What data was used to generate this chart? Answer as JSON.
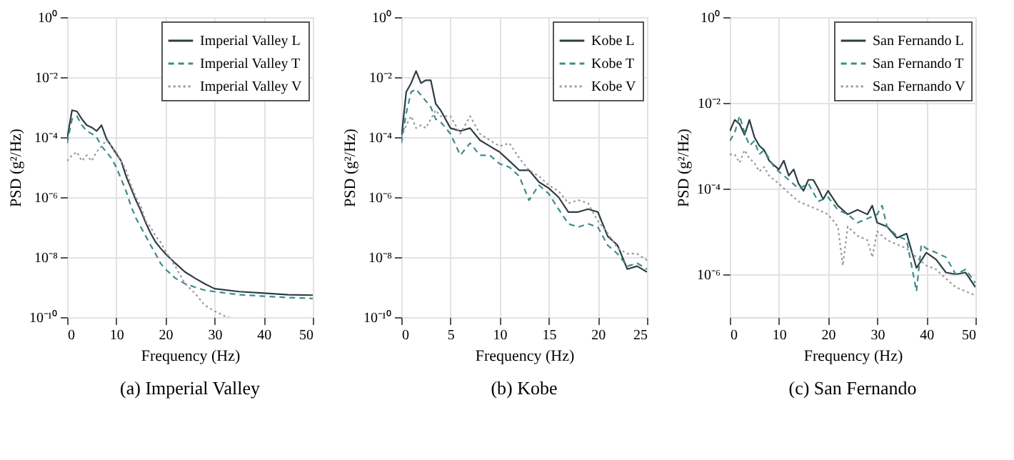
{
  "chart_data": [
    {
      "type": "line",
      "title": "(a) Imperial Valley",
      "xlabel": "Frequency (Hz)",
      "ylabel": "PSD (g²/Hz)",
      "log": true,
      "grid": true,
      "legend": "top right",
      "xlim": [
        0,
        50
      ],
      "xticks": [
        0,
        10,
        20,
        30,
        40,
        50
      ],
      "ylim": [
        1e-10,
        1
      ],
      "yticks": [
        {
          "value": 1e-10,
          "label": "10⁻¹⁰"
        },
        {
          "value": 1e-08,
          "label": "10⁻⁸"
        },
        {
          "value": 1e-06,
          "label": "10⁻⁶"
        },
        {
          "value": 0.0001,
          "label": "10⁻⁴"
        },
        {
          "value": 0.01,
          "label": "10⁻²"
        },
        {
          "value": 1,
          "label": "10⁰"
        }
      ],
      "series": [
        {
          "name": "Imperial Valley L",
          "color": "#2e3d42",
          "line_style": "solid",
          "x": [
            0,
            1,
            2,
            3,
            4,
            5,
            6,
            7,
            8,
            9,
            10,
            11,
            12,
            13,
            14,
            15,
            16,
            17,
            18,
            19,
            20,
            22,
            24,
            26,
            28,
            30,
            35,
            40,
            45,
            50
          ],
          "values": [
            8.9e-05,
            0.00079,
            0.00072,
            0.0004,
            0.00025,
            0.00021,
            0.00016,
            0.00025,
            8.9e-05,
            5e-05,
            2.8e-05,
            1.6e-05,
            5e-06,
            2e-06,
            7.9e-07,
            3.5e-07,
            1.4e-07,
            6.3e-08,
            3.2e-08,
            2e-08,
            1.3e-08,
            6.3e-09,
            3.2e-09,
            2e-09,
            1.3e-09,
            8.9e-10,
            7.1e-10,
            6.3e-10,
            5.6e-10,
            5.4e-10
          ]
        },
        {
          "name": "Imperial Valley T",
          "color": "#3d8c8a",
          "line_style": "dashed",
          "x": [
            0,
            1,
            2,
            3,
            4,
            5,
            6,
            7,
            8,
            9,
            10,
            11,
            12,
            13,
            14,
            15,
            16,
            17,
            18,
            19,
            20,
            22,
            24,
            26,
            28,
            30,
            35,
            40,
            45,
            50
          ],
          "values": [
            6.3e-05,
            0.0004,
            0.0005,
            0.00025,
            0.00016,
            0.00013,
            0.0001,
            5e-05,
            3.2e-05,
            2e-05,
            1e-05,
            4e-06,
            1.6e-06,
            5e-07,
            2e-07,
            1e-07,
            5e-08,
            2.5e-08,
            1.3e-08,
            6.3e-09,
            4e-09,
            2e-09,
            1.3e-09,
            1e-09,
            7.9e-10,
            7.1e-10,
            5.6e-10,
            5e-10,
            4.5e-10,
            4.2e-10
          ]
        },
        {
          "name": "Imperial Valley V",
          "color": "#9a9a9a",
          "line_style": "dotted",
          "x": [
            0,
            1,
            2,
            3,
            4,
            5,
            6,
            7,
            8,
            9,
            10,
            11,
            12,
            13,
            14,
            15,
            16,
            17,
            18,
            19,
            20,
            22,
            24,
            26,
            28,
            30,
            32,
            33
          ],
          "values": [
            1.6e-05,
            2.5e-05,
            3.2e-05,
            1.6e-05,
            2.5e-05,
            1.6e-05,
            3.2e-05,
            5e-05,
            7.9e-05,
            5e-05,
            3.2e-05,
            1.6e-05,
            7.9e-06,
            2.5e-06,
            1e-06,
            5e-07,
            1.6e-07,
            1e-07,
            5e-08,
            3.2e-08,
            1.6e-08,
            5e-09,
            1.3e-09,
            6.3e-10,
            2.5e-10,
            1.6e-10,
            1.1e-10,
            1e-10
          ]
        }
      ]
    },
    {
      "type": "line",
      "title": "(b) Kobe",
      "xlabel": "Frequency (Hz)",
      "ylabel": "PSD (g²/Hz)",
      "log": true,
      "grid": true,
      "legend": "top right",
      "xlim": [
        0,
        25
      ],
      "xticks": [
        0,
        5,
        10,
        15,
        20,
        25
      ],
      "ylim": [
        1e-10,
        1
      ],
      "yticks": [
        {
          "value": 1e-10,
          "label": "10⁻¹⁰"
        },
        {
          "value": 1e-08,
          "label": "10⁻⁸"
        },
        {
          "value": 1e-06,
          "label": "10⁻⁶"
        },
        {
          "value": 0.0001,
          "label": "10⁻⁴"
        },
        {
          "value": 0.01,
          "label": "10⁻²"
        },
        {
          "value": 1,
          "label": "10⁰"
        }
      ],
      "series": [
        {
          "name": "Kobe L",
          "color": "#2e3d42",
          "line_style": "solid",
          "x": [
            0,
            0.5,
            1,
            1.5,
            2,
            2.5,
            3,
            3.5,
            4,
            5,
            6,
            7,
            8,
            9,
            10,
            11,
            12,
            13,
            14,
            15,
            16,
            17,
            18,
            19,
            20,
            21,
            22,
            23,
            24,
            25
          ],
          "values": [
            8.9e-05,
            0.0032,
            0.0063,
            0.016,
            0.0063,
            0.0079,
            0.0079,
            0.0013,
            0.00079,
            0.0002,
            0.00016,
            0.0002,
            7.9e-05,
            5e-05,
            3.2e-05,
            1.6e-05,
            7.9e-06,
            7.9e-06,
            3.2e-06,
            2e-06,
            1e-06,
            3.2e-07,
            3.2e-07,
            4e-07,
            3.2e-07,
            5e-08,
            2.5e-08,
            4e-09,
            5e-09,
            3.2e-09
          ]
        },
        {
          "name": "Kobe T",
          "color": "#3d8c8a",
          "line_style": "dashed",
          "x": [
            0,
            0.5,
            1,
            1.5,
            2,
            2.5,
            3,
            3.5,
            4,
            5,
            6,
            7,
            8,
            9,
            10,
            11,
            12,
            13,
            14,
            15,
            16,
            17,
            18,
            19,
            20,
            21,
            22,
            23,
            24,
            25
          ],
          "values": [
            6.3e-05,
            0.00063,
            0.0032,
            0.004,
            0.0025,
            0.0016,
            0.001,
            0.0004,
            0.00032,
            0.00013,
            2.5e-05,
            6.3e-05,
            2.5e-05,
            2.5e-05,
            1.3e-05,
            1e-05,
            5e-06,
            7.9e-07,
            2.5e-06,
            1.3e-06,
            4e-07,
            1.3e-07,
            1e-07,
            1.3e-07,
            1e-07,
            2.5e-08,
            1.3e-08,
            5e-09,
            6.3e-09,
            4e-09
          ]
        },
        {
          "name": "Kobe V",
          "color": "#9a9a9a",
          "line_style": "dotted",
          "x": [
            0,
            0.5,
            1,
            1.5,
            2,
            2.5,
            3,
            3.5,
            4,
            5,
            6,
            7,
            8,
            9,
            10,
            11,
            12,
            13,
            14,
            15,
            16,
            17,
            18,
            19,
            20,
            21,
            22,
            23,
            24,
            25
          ],
          "values": [
            0.0001,
            0.00025,
            0.0005,
            0.0002,
            0.00025,
            0.0002,
            0.0004,
            0.00079,
            0.0005,
            0.0005,
            0.00013,
            0.0005,
            0.00013,
            7.9e-05,
            5e-05,
            6.3e-05,
            2e-05,
            7.9e-06,
            5e-06,
            2.5e-06,
            1.6e-06,
            6.3e-07,
            7.9e-07,
            6.3e-07,
            1.6e-07,
            6.3e-08,
            2e-08,
            1.3e-08,
            1.3e-08,
            7.9e-09
          ]
        }
      ]
    },
    {
      "type": "line",
      "title": "(c) San Fernando",
      "xlabel": "Frequency (Hz)",
      "ylabel": "PSD (g²/Hz)",
      "log": true,
      "grid": true,
      "legend": "top right",
      "xlim": [
        0,
        50
      ],
      "xticks": [
        0,
        10,
        20,
        30,
        40,
        50
      ],
      "ylim": [
        1e-07,
        1
      ],
      "yticks": [
        {
          "value": 1e-06,
          "label": "10⁻⁶"
        },
        {
          "value": 0.0001,
          "label": "10⁻⁴"
        },
        {
          "value": 0.01,
          "label": "10⁻²"
        },
        {
          "value": 1,
          "label": "10⁰"
        }
      ],
      "series": [
        {
          "name": "San Fernando L",
          "color": "#2e3d42",
          "line_style": "solid",
          "x": [
            0,
            1,
            2,
            3,
            4,
            5,
            6,
            7,
            8,
            9,
            10,
            11,
            12,
            13,
            14,
            15,
            16,
            17,
            18,
            19,
            20,
            22,
            24,
            26,
            28,
            29,
            30,
            32,
            34,
            36,
            38,
            40,
            42,
            44,
            46,
            48,
            50
          ],
          "values": [
            0.0022,
            0.004,
            0.0032,
            0.0018,
            0.004,
            0.0016,
            0.001,
            0.00079,
            0.00045,
            0.00035,
            0.00028,
            0.00045,
            0.0002,
            0.00028,
            0.00013,
            8.9e-05,
            0.00016,
            0.00016,
            0.0001,
            5.6e-05,
            8.9e-05,
            4e-05,
            2.5e-05,
            3.2e-05,
            2.5e-05,
            4e-05,
            1.6e-05,
            1.3e-05,
            7.1e-06,
            8.9e-06,
            1.4e-06,
            3.2e-06,
            2.2e-06,
            1.1e-06,
            1e-06,
            1.1e-06,
            5e-07
          ]
        },
        {
          "name": "San Fernando T",
          "color": "#3d8c8a",
          "line_style": "dashed",
          "x": [
            0,
            1,
            2,
            3,
            4,
            5,
            6,
            7,
            8,
            9,
            10,
            12,
            14,
            16,
            18,
            20,
            22,
            24,
            26,
            28,
            30,
            31,
            32,
            34,
            36,
            38,
            39,
            40,
            42,
            44,
            46,
            48,
            50
          ],
          "values": [
            0.0013,
            0.002,
            0.005,
            0.002,
            0.001,
            0.0013,
            0.00063,
            0.00079,
            0.0005,
            0.00032,
            0.00025,
            0.00016,
            0.0001,
            0.00013,
            5e-05,
            6.3e-05,
            3.2e-05,
            2.5e-05,
            1.6e-05,
            2e-05,
            2.5e-05,
            4e-05,
            1.3e-05,
            7.9e-06,
            6.3e-06,
            4e-07,
            5e-06,
            4e-06,
            3.2e-06,
            2.5e-06,
            1e-06,
            1.3e-06,
            6.3e-07
          ]
        },
        {
          "name": "San Fernando V",
          "color": "#9a9a9a",
          "line_style": "dotted",
          "x": [
            0,
            1,
            2,
            3,
            4,
            5,
            6,
            7,
            8,
            9,
            10,
            12,
            14,
            16,
            18,
            20,
            22,
            23,
            24,
            26,
            28,
            29,
            30,
            32,
            34,
            36,
            38,
            40,
            42,
            44,
            46,
            48,
            50
          ],
          "values": [
            0.00063,
            0.00063,
            0.0004,
            0.00079,
            0.0005,
            0.0004,
            0.00025,
            0.00032,
            0.0002,
            0.00016,
            0.00013,
            7.9e-05,
            5e-05,
            4e-05,
            3.2e-05,
            2.5e-05,
            1.3e-05,
            1.6e-06,
            1.3e-05,
            7.9e-06,
            6.3e-06,
            2.5e-06,
            1e-05,
            6.3e-06,
            5e-06,
            4e-06,
            2.5e-06,
            1.6e-06,
            1.3e-06,
            7.9e-07,
            5e-07,
            4e-07,
            3.2e-07
          ]
        }
      ]
    }
  ]
}
